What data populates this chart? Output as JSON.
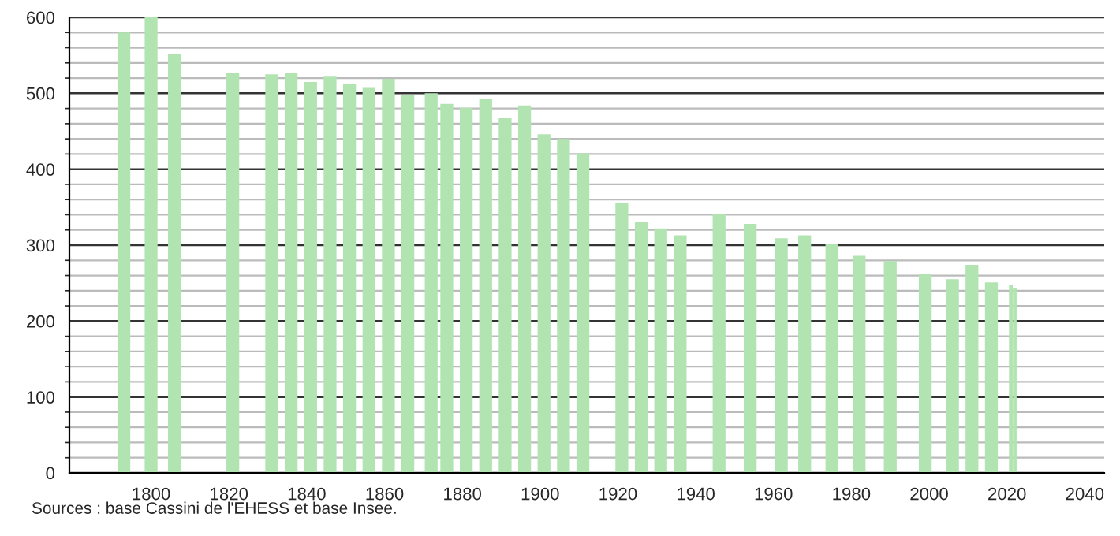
{
  "chart_data": {
    "type": "bar",
    "x": [
      1793,
      1800,
      1806,
      1821,
      1831,
      1836,
      1841,
      1846,
      1851,
      1856,
      1861,
      1866,
      1872,
      1876,
      1881,
      1886,
      1891,
      1896,
      1901,
      1906,
      1911,
      1921,
      1926,
      1931,
      1936,
      1946,
      1954,
      1962,
      1968,
      1975,
      1982,
      1990,
      1999,
      2006,
      2011,
      2016,
      2021,
      2022
    ],
    "values": [
      580,
      600,
      552,
      527,
      525,
      527,
      515,
      522,
      512,
      507,
      519,
      498,
      500,
      486,
      481,
      492,
      467,
      484,
      446,
      440,
      421,
      355,
      330,
      322,
      313,
      341,
      328,
      309,
      313,
      301,
      286,
      279,
      262,
      255,
      274,
      251,
      247,
      244
    ],
    "color": "#b2e4b2",
    "xlim": [
      1779,
      2045
    ],
    "xticks": [
      1800,
      1820,
      1840,
      1860,
      1880,
      1900,
      1920,
      1940,
      1960,
      1980,
      2000,
      2020,
      2040
    ],
    "ylim": [
      0,
      600
    ],
    "yticks": [
      0,
      100,
      200,
      300,
      400,
      500,
      600
    ],
    "grid": "y",
    "annotations": [
      "Sources : base Cassini de l'EHESS et base Insee."
    ]
  }
}
